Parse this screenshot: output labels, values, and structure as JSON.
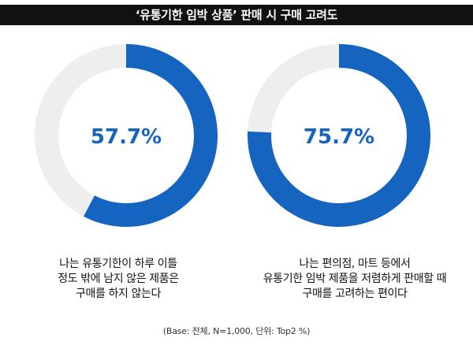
{
  "title": "‘유통기한 임박 상품’ 판매 시 구매 고려도",
  "colors": {
    "accent": "#1565c0",
    "track": "#eeeeee",
    "title_bg": "#111111"
  },
  "chart_data": [
    {
      "type": "pie",
      "variant": "donut",
      "value": 57.7,
      "max": 100,
      "center_label": "57.7%",
      "caption_lines": [
        "나는 유통기한이 하루 이틀",
        "정도 밖에 남지 않은 제품은",
        "구매를 하지 않는다"
      ]
    },
    {
      "type": "pie",
      "variant": "donut",
      "value": 75.7,
      "max": 100,
      "center_label": "75.7%",
      "caption_lines": [
        "나는 편의점, 마트 등에서",
        "유통기한 임박 제품을 저렴하게 판매할 때",
        "구매를 고려하는 편이다"
      ]
    }
  ],
  "footnote": "(Base: 전체, N=1,000, 단위: Top2 %)"
}
